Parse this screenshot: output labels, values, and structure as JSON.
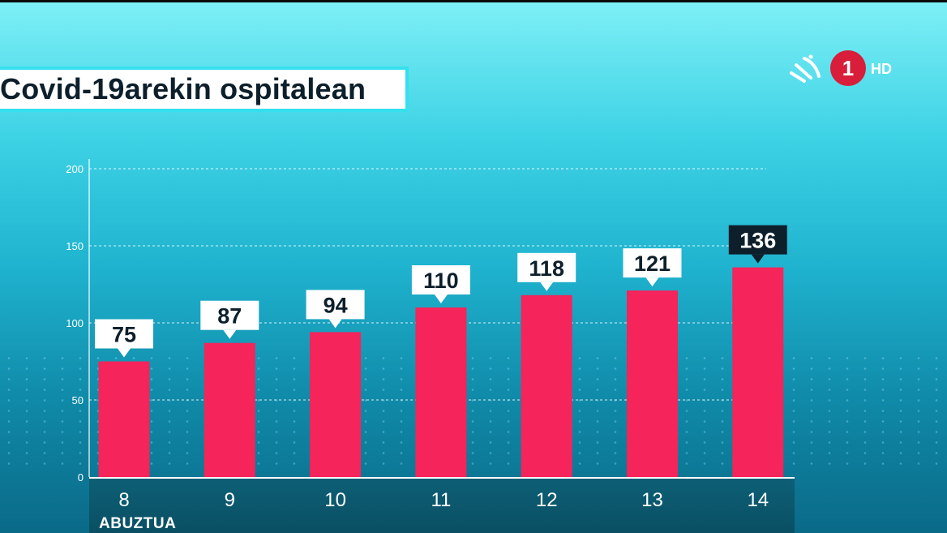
{
  "title": "Covid-19arekin ospitalean",
  "logo": {
    "channel_number": "1",
    "quality": "HD"
  },
  "month_label": "ABUZTUA",
  "colors": {
    "bar": "#f5245a",
    "label_bg": "#ffffff",
    "label_text": "#0d1f2b",
    "highlight_bg": "#0d1f2b",
    "highlight_text": "#ffffff",
    "logo_red": "#d81e3a"
  },
  "chart_data": {
    "type": "bar",
    "title": "Covid-19arekin ospitalean",
    "categories": [
      "8",
      "9",
      "10",
      "11",
      "12",
      "13",
      "14"
    ],
    "values": [
      75,
      87,
      94,
      110,
      118,
      121,
      136
    ],
    "value_labels": [
      "75",
      "87",
      "94",
      "110",
      "118",
      "121",
      "136"
    ],
    "highlight_index": 6,
    "ylim": [
      0,
      200
    ],
    "yticks": [
      0,
      50,
      100,
      150,
      200
    ],
    "ytick_labels": [
      "0",
      "50",
      "100",
      "150",
      "200"
    ],
    "grid": true
  }
}
